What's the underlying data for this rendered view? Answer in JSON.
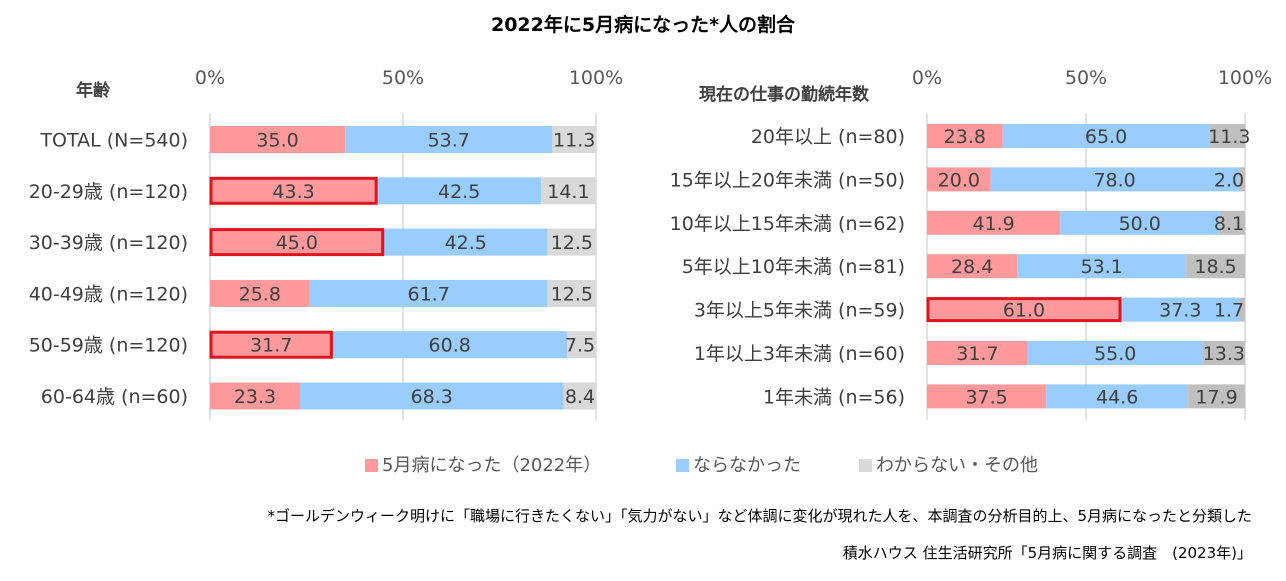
{
  "title": "2022年に5月病になった*人の割合",
  "colors": {
    "became": "#FF999C",
    "did_not": "#99CCFF",
    "unknown_left": "#D9D9D9",
    "unknown_right": "#BFBFBF",
    "highlight": "#E0141E",
    "grid": "#D9D9D9"
  },
  "legend": [
    {
      "label": "5月病になった（2022年）",
      "color": "#FF999C"
    },
    {
      "label": "ならなかった",
      "color": "#99CCFF"
    },
    {
      "label": "わからない・その他",
      "color": "#D9D9D9"
    }
  ],
  "footnote": "*ゴールデンウィーク明けに「職場に行きたくない」「気力がない」など体調に変化が現れた人を、本調査の分析目的上、5月病になったと分類した",
  "source": "積水ハウス 住生活研究所「5月病に関する調査　(2023年)」",
  "chart_data": [
    {
      "type": "bar",
      "orientation": "horizontal",
      "stacked": "100%",
      "title": "",
      "category_header": "年齢",
      "xlim": [
        0,
        100
      ],
      "xticks": [
        "0%",
        "50%",
        "100%"
      ],
      "grid": true,
      "categories": [
        "TOTAL (N=540)",
        "20-29歳 (n=120)",
        "30-39歳 (n=120)",
        "40-49歳 (n=120)",
        "50-59歳 (n=120)",
        "60-64歳 (n=60)"
      ],
      "series": [
        {
          "name": "5月病になった（2022年）",
          "values": [
            35.0,
            43.3,
            45.0,
            25.8,
            31.7,
            23.3
          ],
          "labels": [
            "35.0",
            "43.3",
            "45.0",
            "25.8",
            "31.7",
            "23.3"
          ]
        },
        {
          "name": "ならなかった",
          "values": [
            53.7,
            42.5,
            42.5,
            61.7,
            60.8,
            68.3
          ],
          "labels": [
            "53.7",
            "42.5",
            "42.5",
            "61.7",
            "60.8",
            "68.3"
          ]
        },
        {
          "name": "わからない・その他",
          "values": [
            11.3,
            14.1,
            12.5,
            12.5,
            7.5,
            8.4
          ],
          "labels": [
            "11.3",
            "14.1",
            "12.5",
            "12.5",
            "7.5",
            "8.4"
          ]
        }
      ],
      "highlighted": [
        false,
        true,
        true,
        false,
        true,
        false
      ]
    },
    {
      "type": "bar",
      "orientation": "horizontal",
      "stacked": "100%",
      "title": "",
      "category_header": "現在の仕事の勤続年数",
      "xlim": [
        0,
        100
      ],
      "xticks": [
        "0%",
        "50%",
        "100%"
      ],
      "grid": true,
      "categories": [
        "20年以上 (n=80)",
        "15年以上20年未満 (n=50)",
        "10年以上15年未満 (n=62)",
        "5年以上10年未満 (n=81)",
        "3年以上5年未満 (n=59)",
        "1年以上3年未満 (n=60)",
        "1年未満 (n=56)"
      ],
      "series": [
        {
          "name": "5月病になった（2022年）",
          "values": [
            23.8,
            20.0,
            41.9,
            28.4,
            61.0,
            31.7,
            37.5
          ],
          "labels": [
            "23.8",
            "20.0",
            "41.9",
            "28.4",
            "61.0",
            "31.7",
            "37.5"
          ]
        },
        {
          "name": "ならなかった",
          "values": [
            65.0,
            78.0,
            50.0,
            53.1,
            37.3,
            55.0,
            44.6
          ],
          "labels": [
            "65.0",
            "78.0",
            "50.0",
            "53.1",
            "37.3",
            "55.0",
            "44.6"
          ]
        },
        {
          "name": "わからない・その他",
          "values": [
            11.3,
            2.0,
            8.1,
            18.5,
            1.7,
            13.3,
            17.9
          ],
          "labels": [
            "11.3",
            "2.0",
            "8.1",
            "18.5",
            "1.7",
            "13.3",
            "17.9"
          ]
        }
      ],
      "highlighted": [
        false,
        false,
        false,
        false,
        true,
        false,
        false
      ]
    }
  ]
}
